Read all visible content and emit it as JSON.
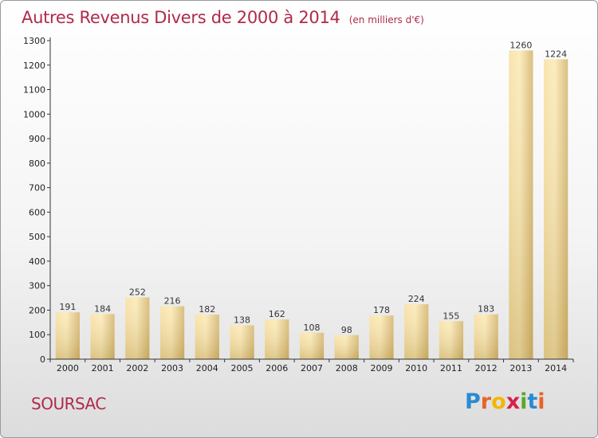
{
  "header": {
    "title": "Autres Revenus Divers de 2000 à 2014",
    "unit": "(en milliers d'€)"
  },
  "footer": {
    "commune": "SOURSAC",
    "logo_letters": [
      "P",
      "r",
      "o",
      "x",
      "i",
      "t",
      "i"
    ],
    "logo_colors": [
      "#2b8ad1",
      "#e8632a",
      "#f2b705",
      "#d6204a",
      "#5aa82a",
      "#2b8ad1",
      "#e8632a"
    ]
  },
  "colors": {
    "title": "#b02a4a",
    "bar_light": "#fbe7a8",
    "bar_dark": "#cfae62",
    "axis": "#333333"
  },
  "chart_data": {
    "type": "bar",
    "title": "Autres Revenus Divers de 2000 à 2014",
    "xlabel": "",
    "ylabel": "",
    "ylim": [
      0,
      1300
    ],
    "yticks": [
      0,
      100,
      200,
      300,
      400,
      500,
      600,
      700,
      800,
      900,
      1000,
      1100,
      1200,
      1300
    ],
    "grid": false,
    "categories": [
      "2000",
      "2001",
      "2002",
      "2003",
      "2004",
      "2005",
      "2006",
      "2007",
      "2008",
      "2009",
      "2010",
      "2011",
      "2012",
      "2013",
      "2014"
    ],
    "values": [
      191,
      184,
      252,
      216,
      182,
      138,
      162,
      108,
      98,
      178,
      224,
      155,
      183,
      1260,
      1224
    ]
  }
}
